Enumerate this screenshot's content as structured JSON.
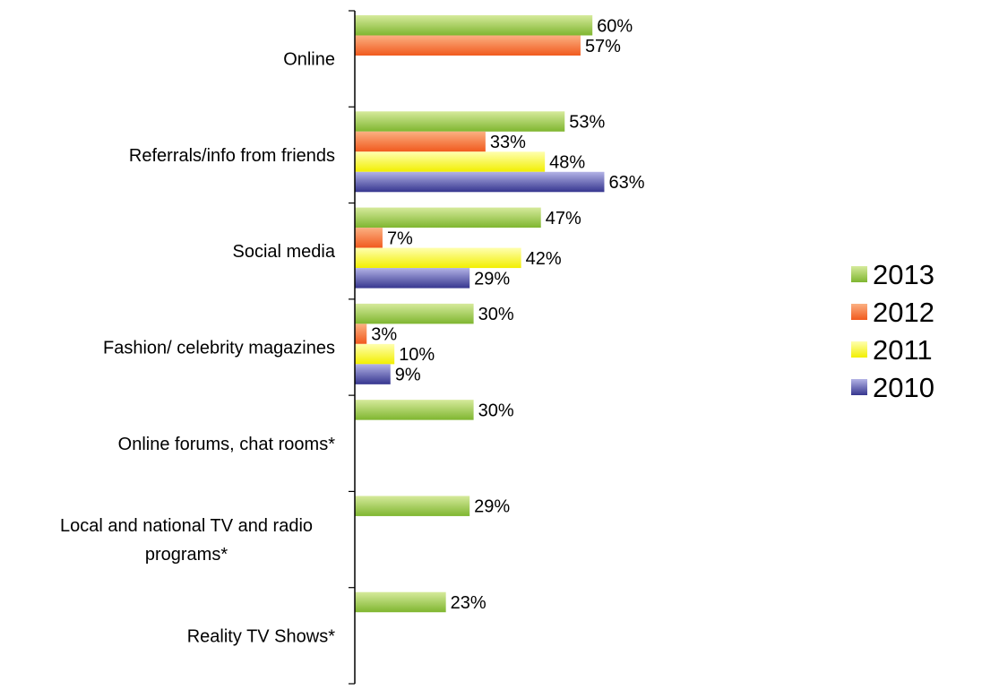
{
  "chart_data": {
    "type": "bar",
    "orientation": "horizontal",
    "categories": [
      "Online",
      "Referrals/info from friends",
      "Social media",
      "Fashion/ celebrity magazines",
      "Online forums, chat rooms*",
      "Local and national TV and radio programs*",
      "Reality TV Shows*"
    ],
    "series": [
      {
        "name": "2013",
        "values": [
          60,
          53,
          47,
          30,
          30,
          29,
          23
        ]
      },
      {
        "name": "2012",
        "values": [
          57,
          33,
          7,
          3,
          null,
          null,
          null
        ]
      },
      {
        "name": "2011",
        "values": [
          null,
          48,
          42,
          10,
          null,
          null,
          null
        ]
      },
      {
        "name": "2010",
        "values": [
          null,
          63,
          29,
          9,
          null,
          null,
          null
        ]
      }
    ],
    "value_suffix": "%",
    "legend_position": "right",
    "grid": false,
    "colors": {
      "2013": [
        "#7fb630",
        "#d6ea9c"
      ],
      "2012": [
        "#f15a1e",
        "#fbb082"
      ],
      "2011": [
        "#f2ef00",
        "#ffffb0"
      ],
      "2010": [
        "#36368f",
        "#b3b3e6"
      ]
    }
  }
}
